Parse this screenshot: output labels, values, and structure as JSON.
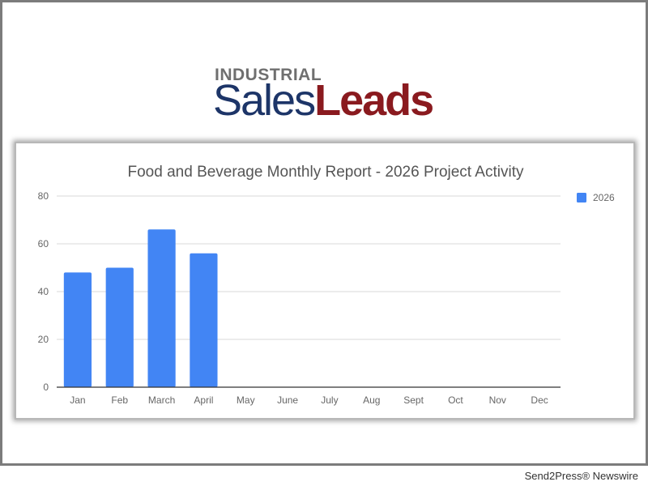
{
  "logo": {
    "line1": "INDUSTRIAL",
    "line2_part1": "Sales",
    "line2_part2": "Leads"
  },
  "colors": {
    "bar": "#4285f4",
    "grid": "#d9d9d9",
    "axis": "#333333",
    "tick_text": "#666666",
    "title_text": "#555555",
    "logo_sales": "#1d3568",
    "logo_leads": "#8a1a1f"
  },
  "chart_data": {
    "type": "bar",
    "title": "Food and Beverage Monthly Report - 2026 Project Activity",
    "xlabel": "",
    "ylabel": "",
    "categories": [
      "Jan",
      "Feb",
      "March",
      "April",
      "May",
      "June",
      "July",
      "Aug",
      "Sept",
      "Oct",
      "Nov",
      "Dec"
    ],
    "series": [
      {
        "name": "2026",
        "values": [
          48,
          50,
          66,
          56,
          null,
          null,
          null,
          null,
          null,
          null,
          null,
          null
        ]
      }
    ],
    "ylim": [
      0,
      80
    ],
    "yticks": [
      0,
      20,
      40,
      60,
      80
    ],
    "grid": true,
    "legend": "right"
  },
  "footer": {
    "credit": "Send2Press® Newswire"
  }
}
